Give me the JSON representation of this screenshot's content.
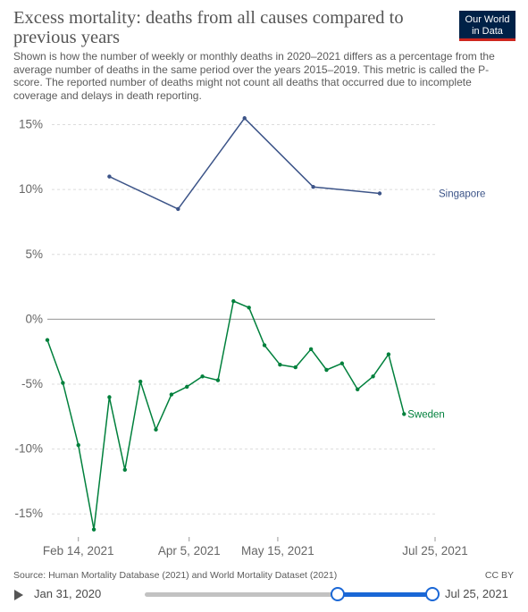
{
  "header": {
    "title": "Excess mortality: deaths from all causes compared to previous years",
    "subtitle": "Shown is how the number of weekly or monthly deaths in 2020–2021 differs as a percentage from the average number of deaths in the same period over the years 2015–2019. This metric is called the P-score. The reported number of deaths might not count all deaths that occurred due to incomplete coverage and delays in death reporting.",
    "logo_line1": "Our World",
    "logo_line2": "in Data"
  },
  "footer": {
    "source": "Source: Human Mortality Database (2021) and World Mortality Dataset (2021)",
    "license": "CC BY"
  },
  "timeline": {
    "start_label": "Jan 31, 2020",
    "end_label": "Jul 25, 2021",
    "selection_start_fraction": 0.67,
    "selection_end_fraction": 1.0
  },
  "chart_data": {
    "type": "line",
    "y_ticks": [
      {
        "value": 15,
        "label": "15%"
      },
      {
        "value": 10,
        "label": "10%"
      },
      {
        "value": 5,
        "label": "5%"
      },
      {
        "value": 0,
        "label": "0%"
      },
      {
        "value": -5,
        "label": "-5%"
      },
      {
        "value": -10,
        "label": "-10%"
      },
      {
        "value": -15,
        "label": "-15%"
      }
    ],
    "ylim": [
      -16.5,
      16
    ],
    "xlim": [
      "2021-01-31",
      "2021-07-25"
    ],
    "x_ticks": [
      {
        "date": "2021-02-14",
        "label": "Feb 14, 2021"
      },
      {
        "date": "2021-04-05",
        "label": "Apr 5, 2021"
      },
      {
        "date": "2021-05-15",
        "label": "May 15, 2021"
      },
      {
        "date": "2021-07-25",
        "label": "Jul 25, 2021"
      }
    ],
    "grid": "horizontal dashed",
    "series": [
      {
        "name": "Singapore",
        "color": "#3c5488",
        "points": [
          {
            "x": "2021-02-28",
            "y": 11.0
          },
          {
            "x": "2021-03-31",
            "y": 8.5
          },
          {
            "x": "2021-04-30",
            "y": 15.5
          },
          {
            "x": "2021-05-31",
            "y": 10.2
          },
          {
            "x": "2021-06-30",
            "y": 9.7
          }
        ]
      },
      {
        "name": "Sweden",
        "color": "#00803c",
        "points": [
          {
            "x": "2021-01-31",
            "y": -1.6
          },
          {
            "x": "2021-02-07",
            "y": -4.9
          },
          {
            "x": "2021-02-14",
            "y": -9.7
          },
          {
            "x": "2021-02-21",
            "y": -16.2
          },
          {
            "x": "2021-02-28",
            "y": -6.0
          },
          {
            "x": "2021-03-07",
            "y": -11.6
          },
          {
            "x": "2021-03-14",
            "y": -4.8
          },
          {
            "x": "2021-03-21",
            "y": -8.5
          },
          {
            "x": "2021-03-28",
            "y": -5.8
          },
          {
            "x": "2021-04-04",
            "y": -5.2
          },
          {
            "x": "2021-04-11",
            "y": -4.4
          },
          {
            "x": "2021-04-18",
            "y": -4.7
          },
          {
            "x": "2021-04-25",
            "y": 1.4
          },
          {
            "x": "2021-05-02",
            "y": 0.9
          },
          {
            "x": "2021-05-09",
            "y": -2.0
          },
          {
            "x": "2021-05-16",
            "y": -3.5
          },
          {
            "x": "2021-05-23",
            "y": -3.7
          },
          {
            "x": "2021-05-30",
            "y": -2.3
          },
          {
            "x": "2021-06-06",
            "y": -3.9
          },
          {
            "x": "2021-06-13",
            "y": -3.4
          },
          {
            "x": "2021-06-20",
            "y": -5.4
          },
          {
            "x": "2021-06-27",
            "y": -4.4
          },
          {
            "x": "2021-07-04",
            "y": -2.7
          },
          {
            "x": "2021-07-11",
            "y": -7.3
          }
        ]
      }
    ]
  }
}
